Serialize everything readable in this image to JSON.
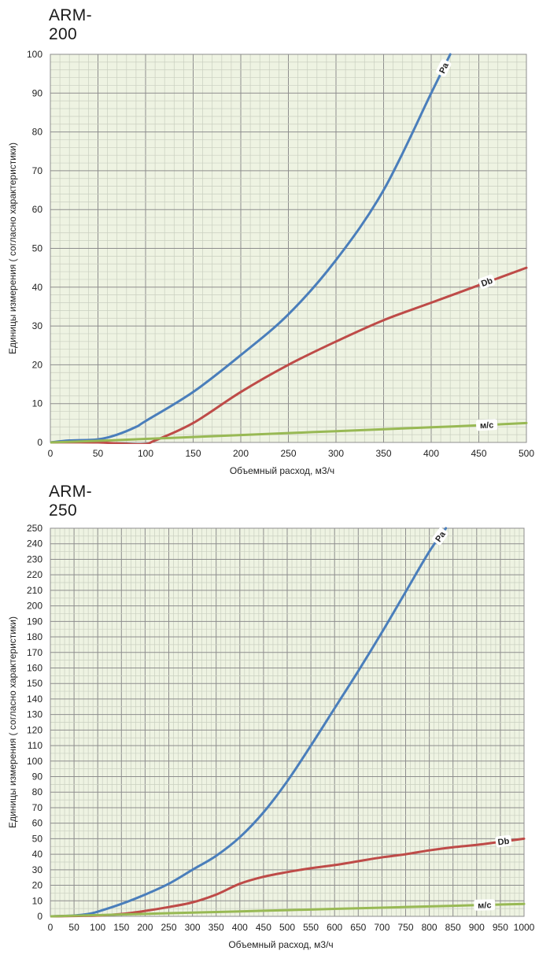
{
  "chart_data": [
    {
      "type": "line",
      "title": "ARM-200",
      "xlabel": "Объемный расход, м3/ч",
      "ylabel": "Единицы измерения ( согласно характеристики)",
      "xlim": [
        0,
        500
      ],
      "ylim": [
        0,
        100
      ],
      "x_ticks": [
        0,
        50,
        100,
        150,
        200,
        250,
        300,
        350,
        400,
        450,
        500
      ],
      "y_ticks": [
        0,
        10,
        20,
        30,
        40,
        50,
        60,
        70,
        80,
        90,
        100
      ],
      "grid": true,
      "plot_background": "#eef3e2",
      "grid_minor_color": "#c9cfc0",
      "grid_major_color": "#8d8d8d",
      "series": [
        {
          "name": "Pa",
          "color": "#4a7ebb",
          "points": [
            [
              0,
              0
            ],
            [
              20,
              0.5
            ],
            [
              50,
              0.8
            ],
            [
              70,
              2
            ],
            [
              90,
              4
            ],
            [
              100,
              5.5
            ],
            [
              150,
              13
            ],
            [
              200,
              22.5
            ],
            [
              250,
              33
            ],
            [
              300,
              47
            ],
            [
              350,
              65
            ],
            [
              400,
              90
            ],
            [
              420,
              100
            ]
          ]
        },
        {
          "name": "Db",
          "color": "#be4b48",
          "points": [
            [
              0,
              0
            ],
            [
              50,
              0
            ],
            [
              95,
              -0.5
            ],
            [
              110,
              0.5
            ],
            [
              150,
              5
            ],
            [
              200,
              13
            ],
            [
              250,
              20
            ],
            [
              300,
              26
            ],
            [
              350,
              31.5
            ],
            [
              400,
              36
            ],
            [
              450,
              40.5
            ],
            [
              500,
              45
            ]
          ]
        },
        {
          "name": "м/с",
          "color": "#98b954",
          "points": [
            [
              0,
              0
            ],
            [
              50,
              0.4
            ],
            [
              100,
              0.9
            ],
            [
              150,
              1.4
            ],
            [
              200,
              1.9
            ],
            [
              250,
              2.4
            ],
            [
              300,
              2.9
            ],
            [
              350,
              3.4
            ],
            [
              400,
              3.9
            ],
            [
              450,
              4.4
            ],
            [
              500,
              5
            ]
          ]
        }
      ]
    },
    {
      "type": "line",
      "title": "ARM-250",
      "xlabel": "Объемный расход, м3/ч",
      "ylabel": "Единицы измерения ( согласно характеристики)",
      "xlim": [
        0,
        1000
      ],
      "ylim": [
        0,
        250
      ],
      "x_ticks": [
        0,
        50,
        100,
        150,
        200,
        250,
        300,
        350,
        400,
        450,
        500,
        550,
        600,
        650,
        700,
        750,
        800,
        850,
        900,
        950,
        1000
      ],
      "y_ticks": [
        0,
        10,
        20,
        30,
        40,
        50,
        60,
        70,
        80,
        90,
        100,
        110,
        120,
        130,
        140,
        150,
        160,
        170,
        180,
        190,
        200,
        210,
        220,
        230,
        240,
        250
      ],
      "grid": true,
      "plot_background": "#eef3e2",
      "grid_minor_color": "#c9cfc0",
      "grid_major_color": "#8d8d8d",
      "series": [
        {
          "name": "Pa",
          "color": "#4a7ebb",
          "points": [
            [
              0,
              0
            ],
            [
              50,
              0.5
            ],
            [
              80,
              1.5
            ],
            [
              100,
              3
            ],
            [
              150,
              8
            ],
            [
              200,
              14
            ],
            [
              250,
              21
            ],
            [
              300,
              30
            ],
            [
              350,
              39
            ],
            [
              400,
              51
            ],
            [
              450,
              67
            ],
            [
              500,
              87
            ],
            [
              550,
              110
            ],
            [
              600,
              134
            ],
            [
              650,
              158
            ],
            [
              700,
              183
            ],
            [
              750,
              209
            ],
            [
              800,
              235
            ],
            [
              835,
              250
            ]
          ]
        },
        {
          "name": "Db",
          "color": "#be4b48",
          "points": [
            [
              0,
              0
            ],
            [
              100,
              0.5
            ],
            [
              150,
              1.5
            ],
            [
              200,
              3.5
            ],
            [
              250,
              6
            ],
            [
              300,
              9
            ],
            [
              350,
              14
            ],
            [
              400,
              21
            ],
            [
              450,
              25.5
            ],
            [
              500,
              28.5
            ],
            [
              550,
              31
            ],
            [
              600,
              33
            ],
            [
              650,
              35.5
            ],
            [
              700,
              38
            ],
            [
              750,
              40
            ],
            [
              800,
              42.5
            ],
            [
              850,
              44.5
            ],
            [
              900,
              46
            ],
            [
              950,
              48
            ],
            [
              1000,
              50
            ]
          ]
        },
        {
          "name": "м/с",
          "color": "#98b954",
          "points": [
            [
              0,
              0
            ],
            [
              100,
              0.8
            ],
            [
              200,
              1.6
            ],
            [
              300,
              2.4
            ],
            [
              400,
              3.2
            ],
            [
              500,
              4
            ],
            [
              600,
              4.8
            ],
            [
              700,
              5.6
            ],
            [
              800,
              6.4
            ],
            [
              900,
              7.2
            ],
            [
              1000,
              8
            ]
          ]
        }
      ]
    }
  ]
}
